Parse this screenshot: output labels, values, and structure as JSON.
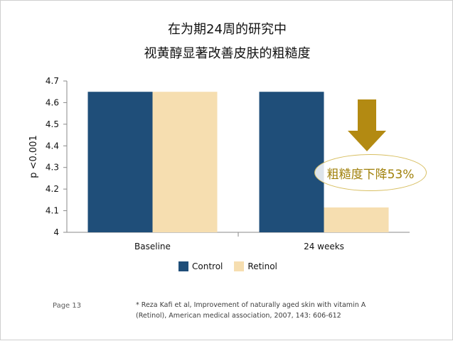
{
  "title_lines": [
    "在为期24周的研究中",
    "视黄醇显著改善皮肤的粗糙度"
  ],
  "colors": {
    "control": "#1f4e79",
    "retinol": "#f6deb0",
    "arrow": "#b38a12",
    "callout_text": "#a0800a"
  },
  "annotation": {
    "text": "粗糙度下降53%",
    "arrow_icon": "down-arrow-icon"
  },
  "footer": {
    "page": "Page 13",
    "reference_line_1": "* Reza Kafi et al, Improvement of naturally aged skin with vitamin A",
    "reference_line_2": "(Retinol), American medical association, 2007, 143: 606-612"
  },
  "chart_data": {
    "type": "bar",
    "categories": [
      "Baseline",
      "24 weeks"
    ],
    "series": [
      {
        "name": "Control",
        "values": [
          4.65,
          4.65
        ]
      },
      {
        "name": "Retinol",
        "values": [
          4.65,
          4.115
        ]
      }
    ],
    "ylabel": "p <0.001",
    "xlabel": "",
    "ylim": [
      4,
      4.7
    ],
    "yticks": [
      "4",
      "4.1",
      "4.2",
      "4.3",
      "4.4",
      "4.5",
      "4.6",
      "4.7"
    ],
    "legend": "bottom",
    "grid": false
  }
}
